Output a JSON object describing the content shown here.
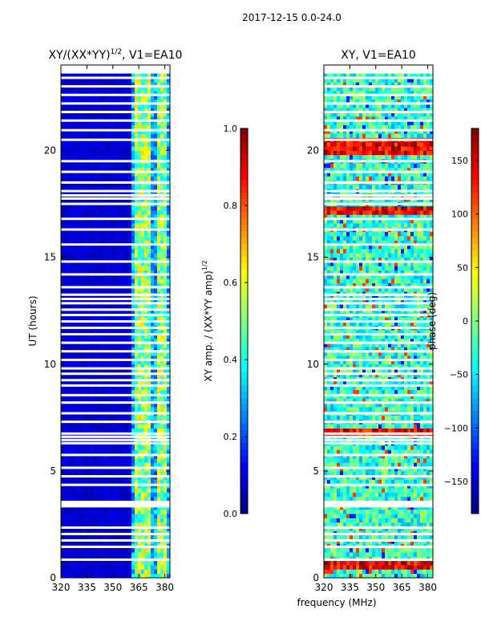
{
  "suptitle": "2017-12-15 0.0-24.0",
  "xlabel": "frequency (MHz)",
  "ylabel": "UT (hours)",
  "chart_data": [
    {
      "type": "heatmap",
      "title_main": "XY/(XX*YY)",
      "title_exp": "1/2",
      "title_tail": ", V1=EA10",
      "xlim": [
        320,
        383
      ],
      "ylim": [
        0,
        24
      ],
      "xticks": [
        320,
        335,
        350,
        365,
        380
      ],
      "yticks": [
        0,
        5,
        10,
        15,
        20
      ],
      "colorbar": {
        "label_main": "XY amp. / (XX*YY amp)",
        "label_exp": "1/2",
        "range": [
          0.0,
          1.0
        ],
        "ticks": [
          "0.0",
          "0.2",
          "0.4",
          "0.6",
          "0.8",
          "1.0"
        ],
        "tick_values": [
          0.0,
          0.2,
          0.4,
          0.6,
          0.8,
          1.0
        ]
      },
      "cmap": "jet",
      "active_band_mhz": [
        361,
        383
      ],
      "active_channels_mhz": [
        364,
        366,
        369,
        371,
        376,
        378,
        380
      ],
      "background_value": 0.05
    },
    {
      "type": "heatmap",
      "title": "XY, V1=EA10",
      "xlim": [
        320,
        383
      ],
      "ylim": [
        0,
        24
      ],
      "xticks": [
        320,
        335,
        350,
        365,
        380
      ],
      "yticks": [
        0,
        5,
        10,
        15,
        20
      ],
      "colorbar": {
        "label": "phase (deg)",
        "range": [
          -180,
          180
        ],
        "ticks": [
          "150",
          "100",
          "50",
          "0",
          "−50",
          "−100",
          "−150"
        ],
        "tick_values": [
          150,
          100,
          50,
          0,
          -50,
          -100,
          -150
        ]
      },
      "cmap": "jet",
      "high_phase_bands_ut": [
        [
          17.1,
          17.3
        ],
        [
          19.8,
          20.6
        ],
        [
          6.6,
          6.9
        ],
        [
          0.5,
          0.8
        ]
      ]
    }
  ],
  "gap_rows_ut": [
    0.85,
    1.45,
    1.75,
    2.05,
    2.35,
    3.35,
    3.45,
    3.55,
    4.35,
    4.75,
    5.15,
    5.75,
    6.3,
    6.45,
    6.6,
    6.75,
    7.3,
    7.7,
    8.2,
    8.55,
    9.0,
    9.25,
    9.55,
    9.8,
    10.2,
    10.6,
    11.0,
    11.4,
    11.7,
    12.0,
    12.3,
    12.55,
    12.85,
    13.05,
    13.25,
    13.6,
    14.2,
    14.8,
    15.6,
    16.3,
    16.8,
    17.5,
    17.75,
    17.9,
    18.1,
    18.5,
    19.0,
    19.5,
    20.5,
    20.95,
    21.4,
    21.8,
    22.2,
    22.6,
    23.0,
    23.4,
    23.8
  ]
}
